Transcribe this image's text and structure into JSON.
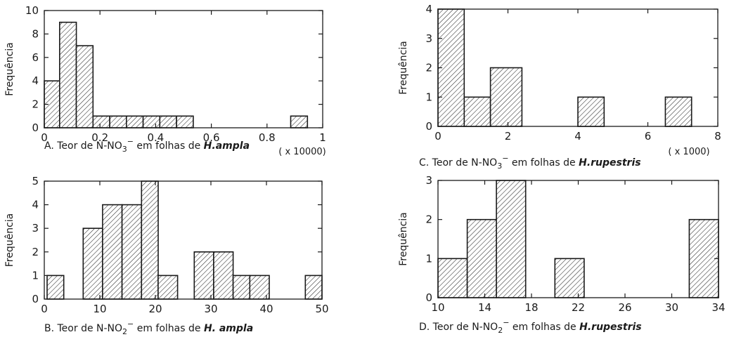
{
  "chart_data": [
    {
      "id": "A",
      "type": "bar",
      "ylabel": "Frequência",
      "caption_prefix": "A. Teor de N-NO",
      "caption_sub": "3",
      "caption_sup": "−",
      "caption_mid": " em folhas de ",
      "caption_species": "H.ampla",
      "multiplier": "( x 10000)",
      "xlim": [
        0,
        1
      ],
      "ylim": [
        0,
        10
      ],
      "xticks": [
        0,
        0.2,
        0.4,
        0.6,
        0.8,
        1
      ],
      "xtick_labels": [
        "0",
        "0.2",
        "0.4",
        "0.6",
        "0.8",
        "1"
      ],
      "yticks": [
        0,
        2,
        4,
        6,
        8,
        10
      ],
      "ytick_labels": [
        "0",
        "2",
        "4",
        "6",
        "8",
        "10"
      ],
      "bins": [
        {
          "x0": 0,
          "x1": 0.055,
          "count": 4
        },
        {
          "x0": 0.055,
          "x1": 0.115,
          "count": 9
        },
        {
          "x0": 0.115,
          "x1": 0.175,
          "count": 7
        },
        {
          "x0": 0.175,
          "x1": 0.235,
          "count": 1
        },
        {
          "x0": 0.235,
          "x1": 0.295,
          "count": 1
        },
        {
          "x0": 0.295,
          "x1": 0.355,
          "count": 1
        },
        {
          "x0": 0.355,
          "x1": 0.415,
          "count": 1
        },
        {
          "x0": 0.415,
          "x1": 0.475,
          "count": 1
        },
        {
          "x0": 0.475,
          "x1": 0.535,
          "count": 1
        },
        {
          "x0": 0.885,
          "x1": 0.945,
          "count": 1
        }
      ]
    },
    {
      "id": "B",
      "type": "bar",
      "ylabel": "Frequência",
      "caption_prefix": "B. Teor de N-NO",
      "caption_sub": "2",
      "caption_sup": "−",
      "caption_mid": " em folhas de ",
      "caption_species": "H. ampla",
      "multiplier": "",
      "xlim": [
        0,
        50
      ],
      "ylim": [
        0,
        5
      ],
      "xticks": [
        0,
        10,
        20,
        30,
        40,
        50
      ],
      "xtick_labels": [
        "0",
        "10",
        "20",
        "30",
        "40",
        "50"
      ],
      "yticks": [
        0,
        1,
        2,
        3,
        4,
        5
      ],
      "ytick_labels": [
        "0",
        "1",
        "2",
        "3",
        "4",
        "5"
      ],
      "bins": [
        {
          "x0": 0.5,
          "x1": 3.5,
          "count": 1
        },
        {
          "x0": 7,
          "x1": 10.5,
          "count": 3
        },
        {
          "x0": 10.5,
          "x1": 14,
          "count": 4
        },
        {
          "x0": 14,
          "x1": 17.5,
          "count": 4
        },
        {
          "x0": 17.5,
          "x1": 20.5,
          "count": 5
        },
        {
          "x0": 20.5,
          "x1": 24,
          "count": 1
        },
        {
          "x0": 27,
          "x1": 30.5,
          "count": 2
        },
        {
          "x0": 30.5,
          "x1": 34,
          "count": 2
        },
        {
          "x0": 34,
          "x1": 37,
          "count": 1
        },
        {
          "x0": 37,
          "x1": 40.5,
          "count": 1
        },
        {
          "x0": 47,
          "x1": 50,
          "count": 1
        }
      ]
    },
    {
      "id": "C",
      "type": "bar",
      "ylabel": "Frequência",
      "caption_prefix": "C. Teor de N-NO",
      "caption_sub": "3",
      "caption_sup": "−",
      "caption_mid": " em folhas de ",
      "caption_species": "H.rupestris",
      "multiplier": "( x 1000)",
      "xlim": [
        0,
        8
      ],
      "ylim": [
        0,
        4
      ],
      "xticks": [
        0,
        2,
        4,
        6,
        8
      ],
      "xtick_labels": [
        "0",
        "2",
        "4",
        "6",
        "8"
      ],
      "yticks": [
        0,
        1,
        2,
        3,
        4
      ],
      "ytick_labels": [
        "0",
        "1",
        "2",
        "3",
        "4"
      ],
      "bins": [
        {
          "x0": 0,
          "x1": 0.75,
          "count": 4
        },
        {
          "x0": 0.75,
          "x1": 1.5,
          "count": 1
        },
        {
          "x0": 1.5,
          "x1": 2.4,
          "count": 2
        },
        {
          "x0": 4.0,
          "x1": 4.75,
          "count": 1
        },
        {
          "x0": 6.5,
          "x1": 7.25,
          "count": 1
        }
      ]
    },
    {
      "id": "D",
      "type": "bar",
      "ylabel": "Frequência",
      "caption_prefix": "D. Teor de N-NO",
      "caption_sub": "2",
      "caption_sup": "−",
      "caption_mid": " em folhas de ",
      "caption_species": "H.rupestris",
      "multiplier": "",
      "xlim": [
        10,
        34
      ],
      "ylim": [
        0,
        3
      ],
      "xticks": [
        10,
        14,
        18,
        22,
        26,
        30,
        34
      ],
      "xtick_labels": [
        "10",
        "14",
        "18",
        "22",
        "26",
        "30",
        "34"
      ],
      "yticks": [
        0,
        1,
        2,
        3
      ],
      "ytick_labels": [
        "0",
        "1",
        "2",
        "3"
      ],
      "bins": [
        {
          "x0": 10,
          "x1": 12.5,
          "count": 1
        },
        {
          "x0": 12.5,
          "x1": 15,
          "count": 2
        },
        {
          "x0": 15,
          "x1": 17.5,
          "count": 3
        },
        {
          "x0": 20,
          "x1": 22.5,
          "count": 1
        },
        {
          "x0": 31.5,
          "x1": 34,
          "count": 2
        }
      ]
    }
  ]
}
